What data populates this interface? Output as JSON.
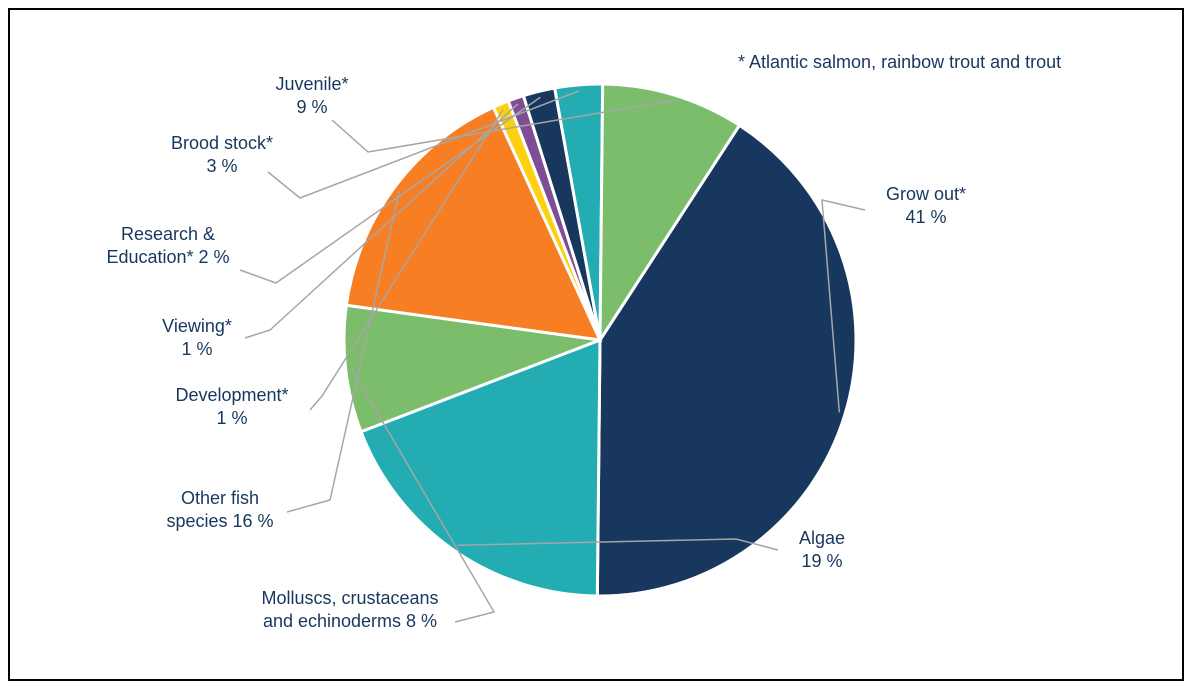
{
  "chart_data": {
    "type": "pie",
    "note": "* Atlantic salmon, rainbow trout and trout",
    "slices": [
      {
        "lines": [
          "Grow out*",
          "41 %"
        ],
        "value": 41,
        "color": "#17375e"
      },
      {
        "lines": [
          "Algae",
          "19 %"
        ],
        "value": 19,
        "color": "#23adb3"
      },
      {
        "lines": [
          "Molluscs, crustaceans",
          "and echinoderms 8 %"
        ],
        "value": 8,
        "color": "#7bbd6b"
      },
      {
        "lines": [
          "Other fish",
          "species 16 %"
        ],
        "value": 16,
        "color": "#f77e22"
      },
      {
        "lines": [
          "Development*",
          "1 %"
        ],
        "value": 1,
        "color": "#fdd10f"
      },
      {
        "lines": [
          "Viewing*",
          "1 %"
        ],
        "value": 1,
        "color": "#7e4d95"
      },
      {
        "lines": [
          "Research &",
          "Education* 2 %"
        ],
        "value": 2,
        "color": "#17375e"
      },
      {
        "lines": [
          "Brood stock*",
          "3 %"
        ],
        "value": 3,
        "color": "#23adb3"
      },
      {
        "lines": [
          "Juvenile*",
          "9 %"
        ],
        "value": 9,
        "color": "#7bbd6b"
      }
    ]
  }
}
